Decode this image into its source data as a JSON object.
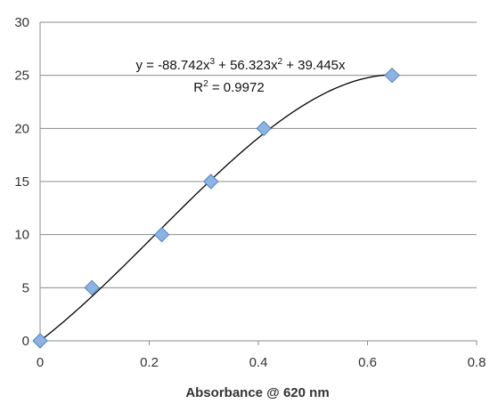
{
  "chart_data": {
    "type": "scatter",
    "title": "",
    "xlabel": "Absorbance @ 620 nm",
    "ylabel": "",
    "xlim": [
      0,
      0.8
    ],
    "ylim": [
      0,
      30
    ],
    "x_ticks": [
      "0",
      "0.2",
      "0.4",
      "0.6",
      "0.8"
    ],
    "y_ticks": [
      "0",
      "5",
      "10",
      "15",
      "20",
      "25",
      "30"
    ],
    "grid": "horizontal",
    "marker": "diamond",
    "marker_color": "#8DB3E2",
    "marker_edge_color": "#4F81BD",
    "series": [
      {
        "x": [
          0,
          0.095,
          0.223,
          0.313,
          0.41,
          0.645
        ],
        "y": [
          0,
          5,
          10,
          15,
          20,
          25
        ]
      }
    ],
    "trendline": {
      "type": "polynomial",
      "coefficients": [
        -88.742,
        56.323,
        39.445,
        0
      ],
      "equation_prefix": "y = -88.742x",
      "eq_exp1": "3",
      "eq_mid": " + 56.323x",
      "eq_exp2": "2",
      "eq_suffix": " + 39.445x",
      "r2_prefix": "R",
      "r2_exp": "2",
      "r2_suffix": " = 0.9972"
    }
  }
}
